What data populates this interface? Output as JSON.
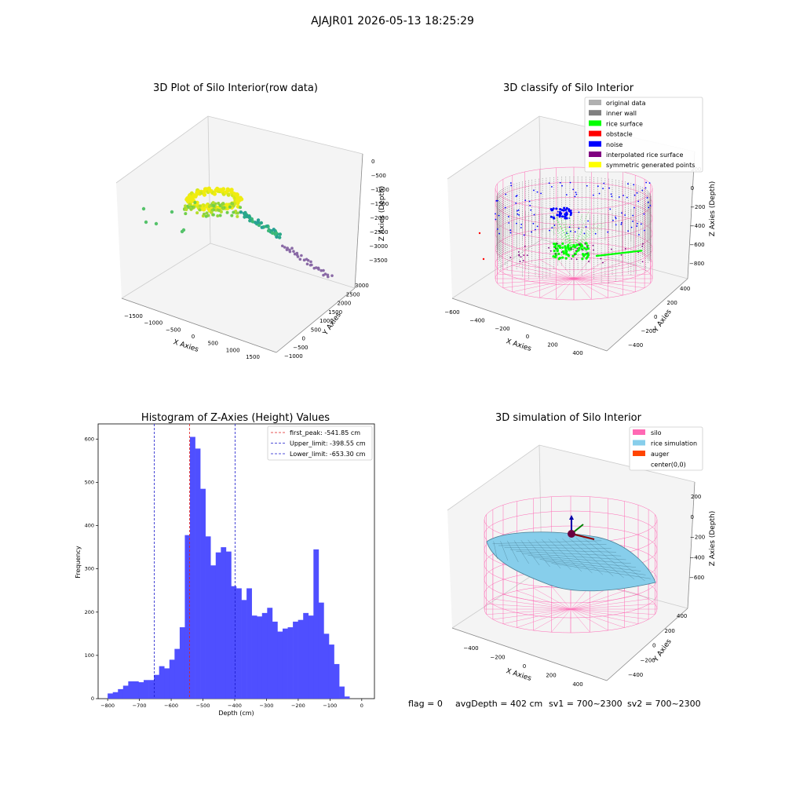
{
  "suptitle": "AJAJR01 2026-05-13 18:25:29",
  "status_line": {
    "flag": "flag = 0",
    "avg_depth": "avgDepth = 402 cm",
    "sv1": "sv1 = 700~2300",
    "sv2": "sv2 = 700~2300"
  },
  "colors": {
    "hist_bar": "#4f4fff",
    "peak_line": "#e02020",
    "limit_line": "#1a1acc",
    "silo_pink": "#ff69b4",
    "rice_sim": "#87ceeb",
    "auger": "#ff4500",
    "inner_wall": "#808080",
    "original": "#b0b0b0",
    "rice_surface": "#00ff00",
    "obstacle": "#ff0000",
    "noise": "#0000ff",
    "interpolated": "#800080",
    "symmetric": "#ffff00"
  },
  "chart_data": [
    {
      "type": "scatter",
      "title": "3D Plot of Silo Interior(row data)",
      "xlabel": "X Axies",
      "ylabel": "Y Axies",
      "zlabel": "Z Axies (Depth)",
      "x_ticks": [
        "−1500",
        "−1000",
        "−500",
        "0",
        "500",
        "1000",
        "1500"
      ],
      "y_ticks": [
        "−1000",
        "−500",
        "0",
        "500",
        "1000",
        "1500",
        "2000",
        "2500",
        "3000"
      ],
      "z_ticks": [
        "0",
        "−500",
        "−1000",
        "−1500",
        "−2000",
        "−2500",
        "−3000",
        "−3500"
      ]
    },
    {
      "type": "scatter",
      "title": "3D classify of Silo Interior",
      "xlabel": "X Axies",
      "ylabel": "Y Axies",
      "zlabel": "Z Axies (Depth)",
      "x_ticks": [
        "−600",
        "−400",
        "−200",
        "0",
        "200",
        "400"
      ],
      "y_ticks": [
        "−400",
        "−200",
        "0",
        "200",
        "400"
      ],
      "z_ticks": [
        "200",
        "0",
        "−200",
        "−400",
        "−600",
        "−800"
      ],
      "legend": [
        {
          "label": "original data",
          "color": "#b0b0b0"
        },
        {
          "label": "inner wall",
          "color": "#808080"
        },
        {
          "label": "rice surface",
          "color": "#00ff00"
        },
        {
          "label": "obstacle",
          "color": "#ff0000"
        },
        {
          "label": "noise",
          "color": "#0000ff"
        },
        {
          "label": "interpolated rice surface",
          "color": "#800080"
        },
        {
          "label": "symmetric generated points",
          "color": "#ffff00"
        }
      ]
    },
    {
      "type": "bar",
      "title": "Histogram of Z-Axies (Height) Values",
      "xlabel": "Depth (cm)",
      "ylabel": "Frequency",
      "xlim": [
        -830,
        40
      ],
      "ylim": [
        0,
        635
      ],
      "x_ticks": [
        -800,
        -700,
        -600,
        -500,
        -400,
        -300,
        -200,
        -100,
        0
      ],
      "y_ticks": [
        0,
        100,
        200,
        300,
        400,
        500,
        600
      ],
      "bin_start": -800,
      "bin_width": 16.2,
      "values": [
        12,
        15,
        22,
        30,
        40,
        40,
        38,
        43,
        43,
        55,
        75,
        70,
        90,
        115,
        165,
        378,
        605,
        578,
        485,
        375,
        308,
        338,
        350,
        340,
        260,
        255,
        228,
        255,
        192,
        190,
        198,
        210,
        178,
        155,
        162,
        165,
        178,
        182,
        198,
        192,
        345,
        222,
        150,
        125,
        80,
        28,
        5
      ],
      "lines": [
        {
          "label": "first_peak: -541.85 cm",
          "x": -541.85,
          "color": "#e02020",
          "style": "dashed"
        },
        {
          "label": "Upper_limit: -398.55 cm",
          "x": -398.55,
          "color": "#1a1acc",
          "style": "dashed"
        },
        {
          "label": "Lower_limit: -653.30 cm",
          "x": -653.3,
          "color": "#1a1acc",
          "style": "dashed"
        }
      ],
      "legend_position": "top-right"
    },
    {
      "type": "surface",
      "title": "3D simulation of Silo Interior",
      "xlabel": "X Axies",
      "ylabel": "Y Axies",
      "zlabel": "Z Axies (Depth)",
      "x_ticks": [
        "−400",
        "−200",
        "0",
        "200",
        "400"
      ],
      "y_ticks": [
        "−400",
        "−200",
        "0",
        "200",
        "400"
      ],
      "z_ticks": [
        "200",
        "0",
        "−200",
        "−400",
        "−600"
      ],
      "legend": [
        {
          "label": "silo",
          "color": "#ff69b4"
        },
        {
          "label": "rice simulation",
          "color": "#87ceeb"
        },
        {
          "label": "auger",
          "color": "#ff4500"
        },
        {
          "label": "center(0,0)",
          "color": ""
        }
      ]
    }
  ]
}
